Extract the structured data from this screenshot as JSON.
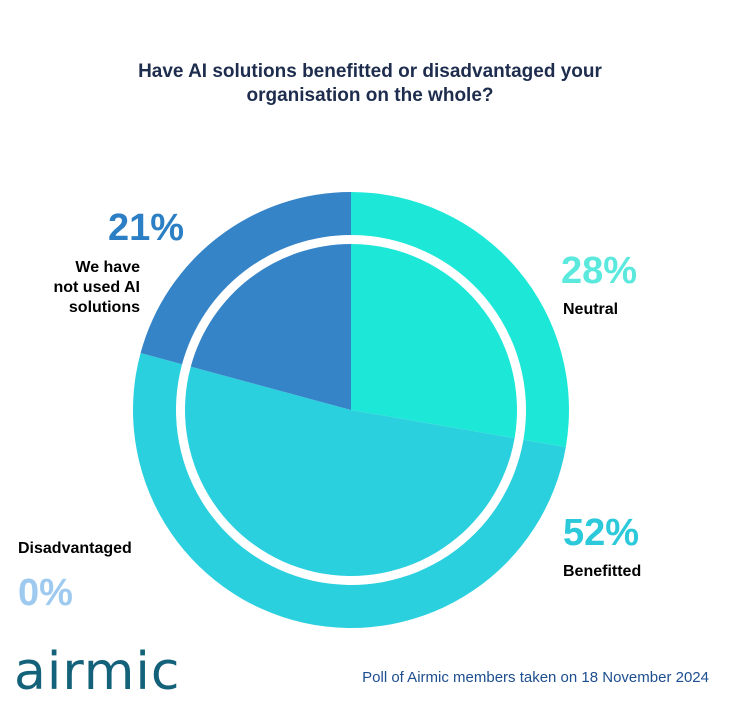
{
  "chart_data": {
    "type": "pie",
    "title_lines": [
      "Have AI solutions benefitted or disadvantaged your",
      "organisation on the whole?"
    ],
    "slices": [
      {
        "name": "Neutral",
        "value": 28,
        "value_label": "28%",
        "color": "#1de8d8",
        "label_color": "#5ce9dd"
      },
      {
        "name": "Benefitted",
        "value": 52,
        "value_label": "52%",
        "color": "#2bd0de",
        "label_color": "#2bc9d9"
      },
      {
        "name": "Disadvantaged",
        "value": 0,
        "value_label": "0%",
        "color": "#9fcaef",
        "label_color": "#9fcaef"
      },
      {
        "name": "We have not used AI solutions",
        "value": 21,
        "value_label": "21%",
        "color": "#3584c8",
        "label_color": "#2c7fc4",
        "label_lines": [
          "We have",
          "not used AI",
          "solutions"
        ]
      }
    ]
  },
  "logo": {
    "text": "airmic"
  },
  "footer": {
    "text": "Poll of Airmic members taken on 18 November 2024"
  }
}
